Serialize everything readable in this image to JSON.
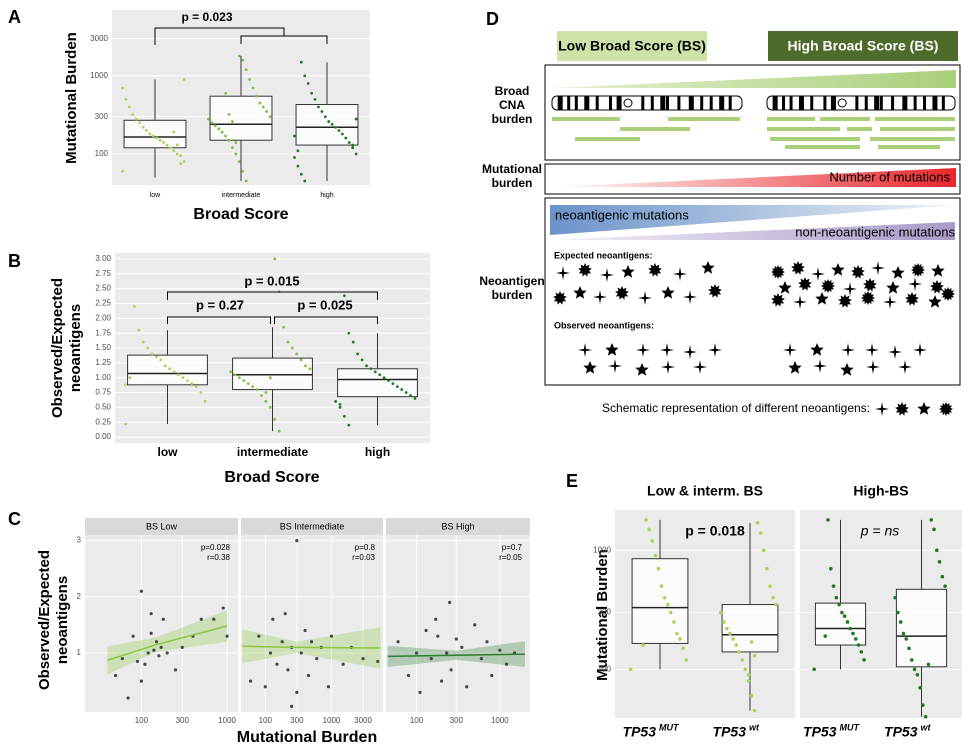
{
  "chart_data": [
    {
      "panel_label": "A",
      "type": "box",
      "ylabel": [
        "Mutational Burden"
      ],
      "xlabel": "Broad Score",
      "categories": [
        "low",
        "intermediate",
        "high"
      ],
      "colors": [
        "#a9d65a",
        "#7cc142",
        "#1e7b1e"
      ],
      "log_y": true,
      "ylim": [
        40,
        7000
      ],
      "yticks": [
        100,
        300,
        1000,
        3000
      ],
      "boxes": [
        {
          "min": 50,
          "q1": 120,
          "median": 165,
          "q3": 270,
          "max": 900
        },
        {
          "min": 45,
          "q1": 150,
          "median": 240,
          "q3": 550,
          "max": 1800
        },
        {
          "min": 45,
          "q1": 130,
          "median": 220,
          "q3": 430,
          "max": 1500
        }
      ],
      "points": [
        [
          60,
          80,
          95,
          100,
          110,
          120,
          130,
          140,
          150,
          160,
          170,
          180,
          200,
          220,
          250,
          280,
          320,
          400,
          500,
          700,
          900,
          75,
          130,
          190
        ],
        [
          45,
          60,
          80,
          100,
          120,
          150,
          170,
          190,
          210,
          230,
          250,
          280,
          300,
          350,
          400,
          450,
          550,
          700,
          900,
          1200,
          1600,
          1800,
          140,
          260,
          320,
          600
        ],
        [
          45,
          55,
          70,
          90,
          100,
          120,
          140,
          160,
          180,
          200,
          220,
          240,
          260,
          300,
          350,
          400,
          500,
          600,
          800,
          1000,
          1500,
          110,
          170,
          280,
          130
        ]
      ],
      "annotations": [
        "p = 0.023"
      ]
    },
    {
      "panel_label": "B",
      "type": "box",
      "ylabel": [
        "Observed/Expected",
        "neoantigens"
      ],
      "xlabel": "Broad Score",
      "categories": [
        "low",
        "intermediate",
        "high"
      ],
      "colors": [
        "#a9d65a",
        "#7cc142",
        "#1e7b1e"
      ],
      "ylim": [
        -0.1,
        3.1
      ],
      "yticks": [
        {
          "value": 0,
          "label": "0.00"
        },
        {
          "value": 0.25,
          "label": "0.25"
        },
        {
          "value": 0.5,
          "label": "0.50"
        },
        {
          "value": 0.75,
          "label": "0.75"
        },
        {
          "value": 1,
          "label": "1.00"
        },
        {
          "value": 1.25,
          "label": "1.25"
        },
        {
          "value": 1.5,
          "label": "1.50"
        },
        {
          "value": 1.75,
          "label": "1.75"
        },
        {
          "value": 2,
          "label": "2.00"
        },
        {
          "value": 2.25,
          "label": "2.25"
        },
        {
          "value": 2.5,
          "label": "2.50"
        },
        {
          "value": 2.75,
          "label": "2.75"
        },
        {
          "value": 3,
          "label": "3.00"
        }
      ],
      "boxes": [
        {
          "min": 0.22,
          "q1": 0.88,
          "median": 1.07,
          "q3": 1.38,
          "max": 1.8
        },
        {
          "min": 0.1,
          "q1": 0.8,
          "median": 1.05,
          "q3": 1.33,
          "max": 1.85
        },
        {
          "min": 0.2,
          "q1": 0.68,
          "median": 0.97,
          "q3": 1.15,
          "max": 1.75
        }
      ],
      "points": [
        [
          0.22,
          0.6,
          0.75,
          0.85,
          0.9,
          0.95,
          1.0,
          1.05,
          1.1,
          1.15,
          1.2,
          1.3,
          1.35,
          1.4,
          1.5,
          1.6,
          1.8,
          2.2,
          1.0,
          0.88
        ],
        [
          0.1,
          0.3,
          0.5,
          0.6,
          0.7,
          0.8,
          0.85,
          0.9,
          0.95,
          1.0,
          1.05,
          1.1,
          1.15,
          1.2,
          1.3,
          1.4,
          1.5,
          1.6,
          1.85,
          2.45,
          3.0,
          1.0,
          0.75
        ],
        [
          0.2,
          0.35,
          0.5,
          0.6,
          0.65,
          0.7,
          0.75,
          0.8,
          0.85,
          0.9,
          0.95,
          1.0,
          1.05,
          1.1,
          1.15,
          1.2,
          1.3,
          1.4,
          1.6,
          1.75,
          2.38,
          0.55
        ]
      ],
      "annotations": [
        "p = 0.015",
        "p = 0.27",
        "p = 0.025"
      ]
    },
    {
      "panel_label": "C",
      "type": "scatter",
      "ylabel": [
        "Observed/Expected",
        "neoantigens"
      ],
      "xlabel": "Mutational Burden",
      "ylim": [
        -0.05,
        3.1
      ],
      "yticks": [
        1,
        2,
        3
      ],
      "log_x": true,
      "point_color": "#474747",
      "facets": [
        {
          "strip": "BS Low",
          "p": "p=0.028",
          "r": "r=0.38",
          "xlim": [
            22,
            1340
          ],
          "xticks": [
            100,
            300,
            1000
          ],
          "fit_color": "#8cc63f",
          "x": [
            50,
            60,
            70,
            80,
            90,
            100,
            110,
            120,
            130,
            140,
            150,
            160,
            100,
            180,
            200,
            250,
            300,
            400,
            500,
            700,
            900,
            1000,
            130,
            170
          ],
          "y": [
            0.6,
            0.9,
            0.2,
            1.3,
            0.85,
            0.5,
            0.8,
            1.0,
            1.35,
            1.05,
            1.2,
            0.95,
            2.1,
            1.6,
            1.0,
            0.7,
            1.1,
            1.3,
            1.6,
            1.6,
            1.8,
            1.3,
            1.7,
            1.1
          ],
          "fit": {
            "x": [
              40,
              150,
              1000
            ],
            "y": [
              0.87,
              1.15,
              1.48
            ],
            "ci_lower": [
              0.62,
              1.02,
              1.2
            ],
            "ci_upper": [
              1.12,
              1.28,
              1.76
            ]
          }
        },
        {
          "strip": "BS Intermediate",
          "p": "p=0.8",
          "r": "r=0.03",
          "xlim": [
            43,
            6000
          ],
          "xticks": [
            100,
            300,
            1000,
            3000
          ],
          "fit_color": "#8cc63f",
          "x": [
            60,
            80,
            100,
            120,
            150,
            180,
            200,
            220,
            250,
            300,
            300,
            350,
            400,
            450,
            500,
            600,
            700,
            900,
            1000,
            1500,
            2000,
            3000,
            5000,
            250,
            130
          ],
          "y": [
            0.5,
            1.3,
            0.4,
            1.0,
            0.8,
            1.2,
            1.7,
            0.7,
            1.1,
            3.0,
            0.3,
            1.0,
            1.4,
            0.6,
            1.2,
            0.9,
            1.1,
            0.4,
            1.3,
            0.8,
            1.1,
            0.9,
            0.85,
            0.05,
            1.6
          ],
          "fit": {
            "x": [
              45,
              300,
              5500
            ],
            "y": [
              1.12,
              1.1,
              1.09
            ],
            "ci_lower": [
              0.82,
              1.0,
              0.72
            ],
            "ci_upper": [
              1.42,
              1.2,
              1.46
            ]
          }
        },
        {
          "strip": "BS High",
          "p": "p=0.7",
          "r": "r=0.05",
          "xlim": [
            43,
            2300
          ],
          "xticks": [
            100,
            300,
            1000
          ],
          "fit_color": "#2e7d32",
          "x": [
            60,
            80,
            100,
            110,
            130,
            150,
            170,
            200,
            230,
            260,
            300,
            350,
            400,
            500,
            600,
            700,
            800,
            1000,
            1200,
            1500,
            250,
            180
          ],
          "y": [
            1.2,
            0.6,
            1.0,
            0.3,
            1.4,
            0.9,
            1.6,
            0.5,
            1.0,
            0.7,
            1.25,
            1.1,
            0.4,
            1.5,
            0.9,
            1.2,
            0.6,
            1.05,
            0.8,
            1.0,
            1.9,
            1.3
          ],
          "fit": {
            "x": [
              45,
              300,
              2000
            ],
            "y": [
              0.94,
              0.96,
              0.98
            ],
            "ci_lower": [
              0.75,
              0.88,
              0.75
            ],
            "ci_upper": [
              1.13,
              1.04,
              1.21
            ]
          }
        }
      ]
    },
    {
      "panel_label": "E",
      "type": "box",
      "ylabel": [
        "Mutational Burden"
      ],
      "log_y": true,
      "ylim": [
        39,
        2180
      ],
      "yticks": [
        100,
        300,
        1000
      ],
      "facets": [
        {
          "strip": "Low & interm. BS",
          "annotation": "p = 0.018",
          "categories": [
            "TP53",
            "TP53"
          ],
          "category_superscripts": [
            "MUT",
            "wt"
          ],
          "colors": [
            "#a9d65a",
            "#a9d65a"
          ],
          "boxes": [
            {
              "min": 100,
              "q1": 165,
              "median": 330,
              "q3": 850,
              "max": 1800
            },
            {
              "min": 45,
              "q1": 140,
              "median": 195,
              "q3": 350,
              "max": 1700
            }
          ],
          "points": [
            [
              100,
              120,
              150,
              180,
              200,
              250,
              300,
              350,
              400,
              500,
              700,
              900,
              1200,
              1500,
              1800,
              160
            ],
            [
              45,
              60,
              80,
              100,
              120,
              140,
              160,
              180,
              200,
              220,
              250,
              300,
              350,
              400,
              500,
              700,
              1000,
              1400,
              1700,
              130,
              170,
              90
            ]
          ]
        },
        {
          "strip": "High-BS",
          "annotation": "p = ns",
          "categories": [
            "TP53",
            "TP53"
          ],
          "category_superscripts": [
            "MUT",
            "wt"
          ],
          "colors": [
            "#1e7b1e",
            "#1e7b1e"
          ],
          "boxes": [
            {
              "min": 100,
              "q1": 160,
              "median": 220,
              "q3": 360,
              "max": 1800
            },
            {
              "min": 40,
              "q1": 105,
              "median": 190,
              "q3": 470,
              "max": 1800
            }
          ],
          "points": [
            [
              100,
              120,
              140,
              160,
              180,
              200,
              220,
              250,
              280,
              300,
              350,
              400,
              500,
              700,
              1800,
              190
            ],
            [
              40,
              50,
              70,
              90,
              100,
              120,
              150,
              180,
              200,
              250,
              300,
              400,
              500,
              600,
              800,
              1000,
              1500,
              1800,
              110
            ]
          ]
        }
      ]
    }
  ],
  "diagram": {
    "panel_label": "D",
    "low_bs": "Low Broad Score (BS)",
    "high_bs": "High Broad Score (BS)",
    "cna_label": [
      "Broad",
      "CNA",
      "burden"
    ],
    "mut_label": [
      "Mutational",
      "burden"
    ],
    "mut_bar": "Number of mutations",
    "neo_label": [
      "Neoantigen",
      "burden"
    ],
    "neoantigenic": "neoantigenic mutations",
    "non_neoantigenic": "non-neoantigenic mutations",
    "expected": "Expected neoantigens:",
    "observed": "Observed neoantigens:",
    "legend": "Schematic representation of different neoantigens:"
  }
}
